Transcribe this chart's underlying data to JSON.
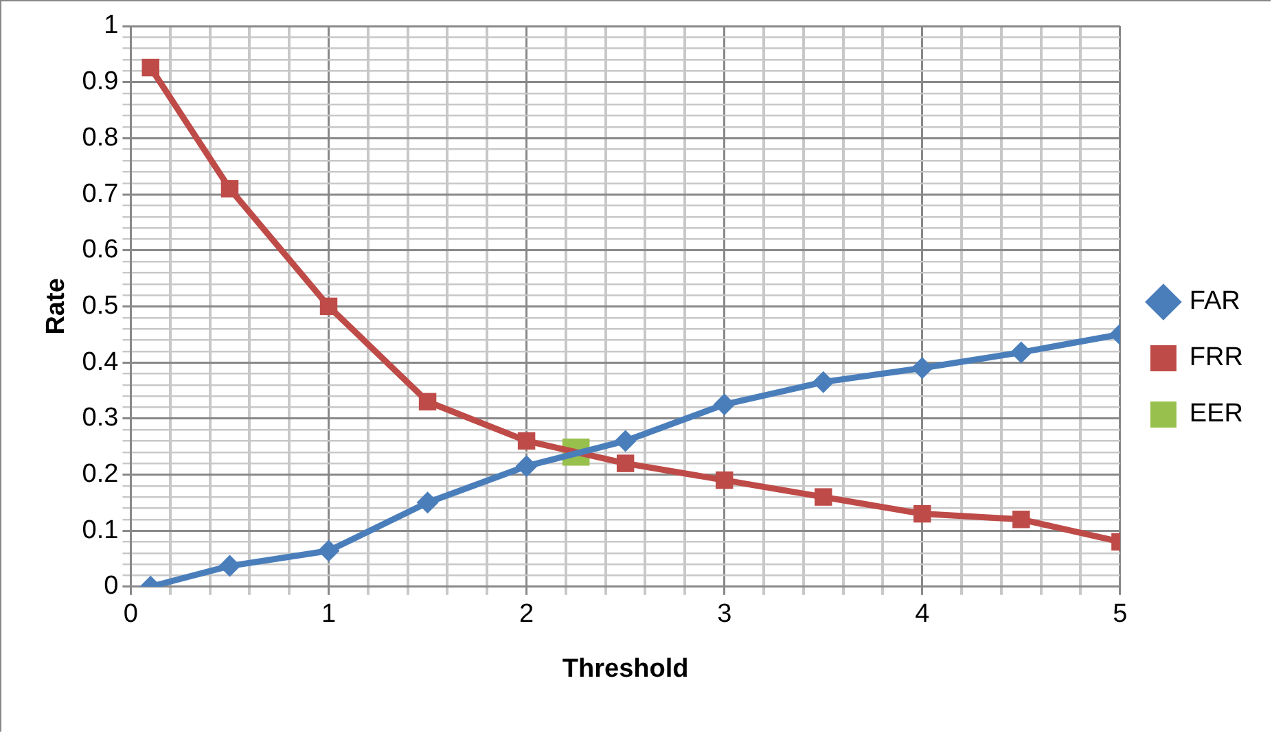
{
  "chart_data": {
    "type": "line",
    "xlabel": "Threshold",
    "ylabel": "Rate",
    "xlim": [
      0,
      5
    ],
    "ylim": [
      0,
      1
    ],
    "xticks": [
      0,
      {
        "value": 0.2,
        "label": null
      },
      {
        "value": 0.4,
        "label": null
      },
      {
        "value": 0.6,
        "label": null
      },
      {
        "value": 0.8,
        "label": null
      },
      1,
      {
        "value": 1.2,
        "label": null
      },
      {
        "value": 1.4,
        "label": null
      },
      {
        "value": 1.6,
        "label": null
      },
      {
        "value": 1.8,
        "label": null
      },
      2,
      {
        "value": 2.2,
        "label": null
      },
      {
        "value": 2.4,
        "label": null
      },
      {
        "value": 2.6,
        "label": null
      },
      {
        "value": 2.8,
        "label": null
      },
      3,
      {
        "value": 3.2,
        "label": null
      },
      {
        "value": 3.4,
        "label": null
      },
      {
        "value": 3.6,
        "label": null
      },
      {
        "value": 3.8,
        "label": null
      },
      4,
      {
        "value": 4.2,
        "label": null
      },
      {
        "value": 4.4,
        "label": null
      },
      {
        "value": 4.6,
        "label": null
      },
      {
        "value": 4.8,
        "label": null
      },
      5
    ],
    "yticks": [
      0,
      {
        "value": 0.02,
        "label": null
      },
      {
        "value": 0.04,
        "label": null
      },
      {
        "value": 0.06,
        "label": null
      },
      {
        "value": 0.08,
        "label": null
      },
      0.1,
      {
        "value": 0.12,
        "label": null
      },
      {
        "value": 0.14,
        "label": null
      },
      {
        "value": 0.16,
        "label": null
      },
      {
        "value": 0.18,
        "label": null
      },
      0.2,
      {
        "value": 0.22,
        "label": null
      },
      {
        "value": 0.24,
        "label": null
      },
      {
        "value": 0.26,
        "label": null
      },
      {
        "value": 0.28,
        "label": null
      },
      0.3,
      {
        "value": 0.32,
        "label": null
      },
      {
        "value": 0.34,
        "label": null
      },
      {
        "value": 0.36,
        "label": null
      },
      {
        "value": 0.38,
        "label": null
      },
      0.4,
      {
        "value": 0.42,
        "label": null
      },
      {
        "value": 0.44,
        "label": null
      },
      {
        "value": 0.46,
        "label": null
      },
      {
        "value": 0.48,
        "label": null
      },
      0.5,
      {
        "value": 0.52,
        "label": null
      },
      {
        "value": 0.54,
        "label": null
      },
      {
        "value": 0.56,
        "label": null
      },
      {
        "value": 0.58,
        "label": null
      },
      0.6,
      {
        "value": 0.62,
        "label": null
      },
      {
        "value": 0.64,
        "label": null
      },
      {
        "value": 0.66,
        "label": null
      },
      {
        "value": 0.68,
        "label": null
      },
      0.7,
      {
        "value": 0.72,
        "label": null
      },
      {
        "value": 0.74,
        "label": null
      },
      {
        "value": 0.76,
        "label": null
      },
      {
        "value": 0.78,
        "label": null
      },
      0.8,
      {
        "value": 0.82,
        "label": null
      },
      {
        "value": 0.84,
        "label": null
      },
      {
        "value": 0.86,
        "label": null
      },
      {
        "value": 0.88,
        "label": null
      },
      0.9,
      {
        "value": 0.92,
        "label": null
      },
      {
        "value": 0.94,
        "label": null
      },
      {
        "value": 0.96,
        "label": null
      },
      {
        "value": 0.98,
        "label": null
      },
      1
    ],
    "grid": true,
    "legend": "right",
    "series": [
      {
        "name": "FAR",
        "color": "#4a7ebb",
        "marker": "diamond",
        "x": [
          0.1,
          0.5,
          1,
          1.5,
          2,
          2.5,
          3,
          3.5,
          4,
          4.5,
          5
        ],
        "values": [
          0,
          0.037,
          0.064,
          0.15,
          0.215,
          0.26,
          0.325,
          0.365,
          0.39,
          0.418,
          0.45
        ]
      },
      {
        "name": "FRR",
        "color": "#be4b48",
        "marker": "square",
        "x": [
          0.1,
          0.5,
          1,
          1.5,
          2,
          2.5,
          3,
          3.5,
          4,
          4.5,
          5
        ],
        "values": [
          0.926,
          0.71,
          0.5,
          0.33,
          0.26,
          0.22,
          0.19,
          0.16,
          0.13,
          0.12,
          0.08
        ]
      },
      {
        "name": "EER",
        "color": "#98c04c",
        "marker": "square",
        "x": [
          2.25
        ],
        "values": [
          0.24
        ]
      }
    ]
  }
}
